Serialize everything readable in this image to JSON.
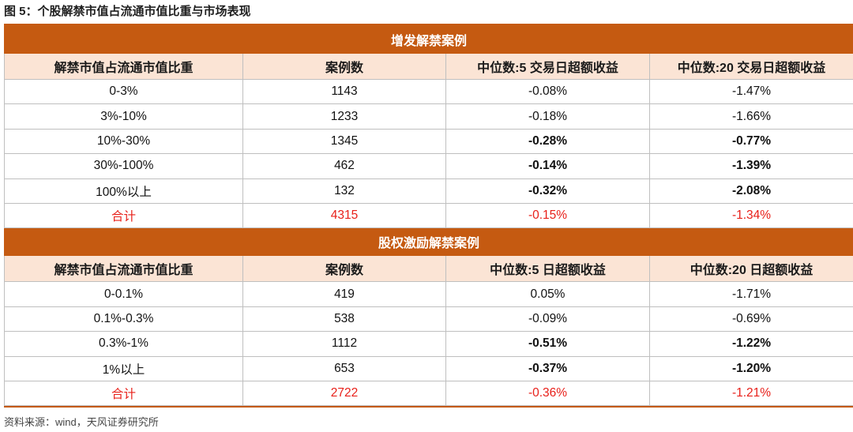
{
  "figure_title": "图 5：个股解禁市值占流通市值比重与市场表现",
  "source_note": "资料来源：wind，天风证券研究所",
  "sections": [
    {
      "title": "增发解禁案例",
      "headers": [
        "解禁市值占流通市值比重",
        "案例数",
        "中位数:5 交易日超额收益",
        "中位数:20 交易日超额收益"
      ],
      "rows": [
        {
          "range": "0-3%",
          "count": "1143",
          "r5": "-0.08%",
          "r20": "-1.47%",
          "bold5": false,
          "bold20": false
        },
        {
          "range": "3%-10%",
          "count": "1233",
          "r5": "-0.18%",
          "r20": "-1.66%",
          "bold5": false,
          "bold20": false
        },
        {
          "range": "10%-30%",
          "count": "1345",
          "r5": "-0.28%",
          "r20": "-0.77%",
          "bold5": true,
          "bold20": true
        },
        {
          "range": "30%-100%",
          "count": "462",
          "r5": "-0.14%",
          "r20": "-1.39%",
          "bold5": true,
          "bold20": true
        },
        {
          "range": "100%以上",
          "count": "132",
          "r5": "-0.32%",
          "r20": "-2.08%",
          "bold5": true,
          "bold20": true
        }
      ],
      "total": {
        "label": "合计",
        "count": "4315",
        "r5": "-0.15%",
        "r20": "-1.34%"
      }
    },
    {
      "title": "股权激励解禁案例",
      "headers": [
        "解禁市值占流通市值比重",
        "案例数",
        "中位数:5 日超额收益",
        "中位数:20 日超额收益"
      ],
      "rows": [
        {
          "range": "0-0.1%",
          "count": "419",
          "r5": "0.05%",
          "r20": "-1.71%",
          "bold5": false,
          "bold20": false
        },
        {
          "range": "0.1%-0.3%",
          "count": "538",
          "r5": "-0.09%",
          "r20": "-0.69%",
          "bold5": false,
          "bold20": false
        },
        {
          "range": "0.3%-1%",
          "count": "1112",
          "r5": "-0.51%",
          "r20": "-1.22%",
          "bold5": true,
          "bold20": true
        },
        {
          "range": "1%以上",
          "count": "653",
          "r5": "-0.37%",
          "r20": "-1.20%",
          "bold5": true,
          "bold20": true
        }
      ],
      "total": {
        "label": "合计",
        "count": "2722",
        "r5": "-0.36%",
        "r20": "-1.21%"
      }
    }
  ],
  "colors": {
    "section_bg": "#c55a11",
    "header_bg": "#fbe4d5",
    "total_text": "#e8201a"
  }
}
